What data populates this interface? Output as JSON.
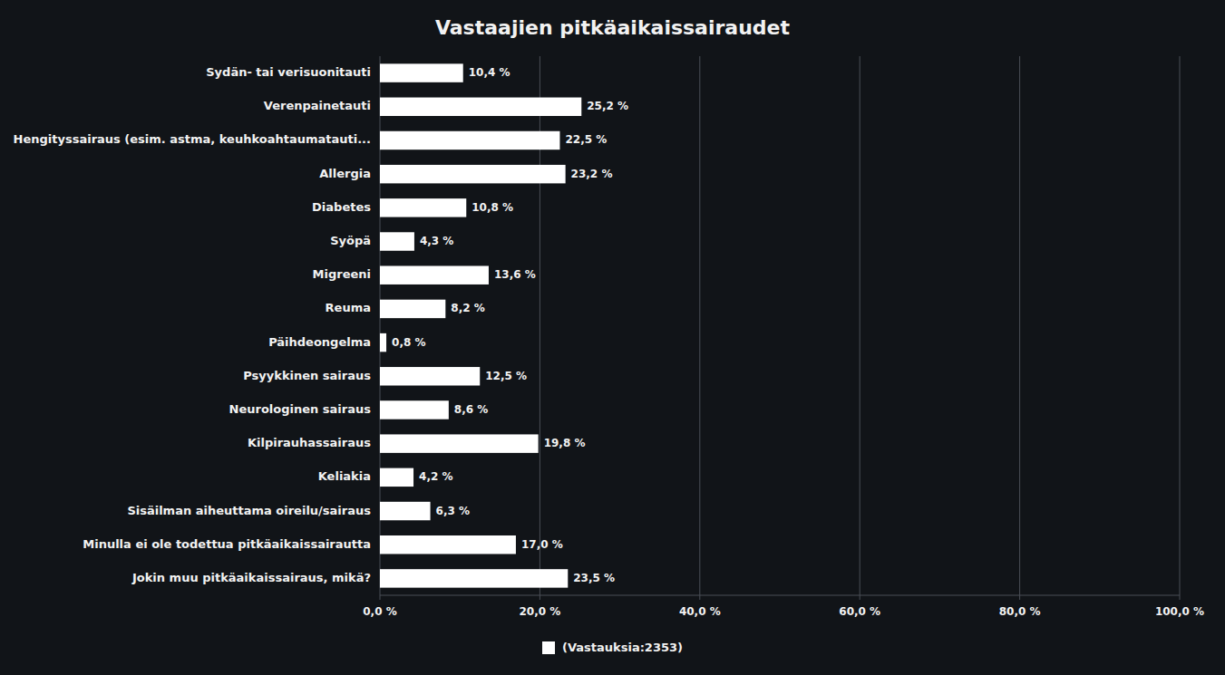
{
  "chart_data": {
    "type": "bar",
    "orientation": "horizontal",
    "title": "Vastaajien pitkäaikaissairaudet",
    "categories": [
      "Jokin muu pitkäaikaissairaus, mikä?",
      "Minulla ei ole todettua pitkäaikaissairautta",
      "Sisäilman aiheuttama oireilu/sairaus",
      "Keliakia",
      "Kilpirauhassairaus",
      "Neurologinen sairaus",
      "Psyykkinen sairaus",
      "Päihdeongelma",
      "Reuma",
      "Migreeni",
      "Syöpä",
      "Diabetes",
      "Allergia",
      "Hengityssairaus (esim. astma, keuhkoahtaumatauti...",
      "Verenpainetauti",
      "Sydän- tai verisuonitauti"
    ],
    "series": [
      {
        "name": "(Vastauksia:2353)",
        "color": "#ffffff",
        "values": [
          23.5,
          17.0,
          6.3,
          4.2,
          19.8,
          8.6,
          12.5,
          0.8,
          8.2,
          13.6,
          4.3,
          10.8,
          23.2,
          22.5,
          25.2,
          10.4
        ],
        "value_labels": [
          "23,5 %",
          "17,0 %",
          "6,3 %",
          "4,2 %",
          "19,8 %",
          "8,6 %",
          "12,5 %",
          "0,8 %",
          "8,2 %",
          "13,6 %",
          "4,3 %",
          "10,8 %",
          "23,2 %",
          "22,5 %",
          "25,2 %",
          "10,4 %"
        ]
      }
    ],
    "data_labels": true,
    "xlim": [
      0,
      100
    ],
    "xticks": [
      {
        "value": 0,
        "label": "0,0 %"
      },
      {
        "value": 20,
        "label": "20,0 %"
      },
      {
        "value": 40,
        "label": "40,0 %"
      },
      {
        "value": 60,
        "label": "60,0 %"
      },
      {
        "value": 80,
        "label": "80,0 %"
      },
      {
        "value": 100,
        "label": "100,0 %"
      }
    ],
    "grid": true,
    "legend": "bottom"
  }
}
